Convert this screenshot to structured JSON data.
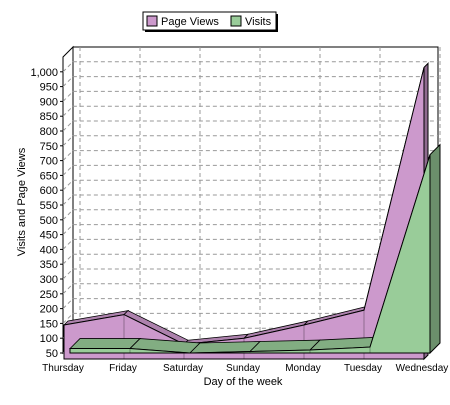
{
  "chart_data": {
    "type": "area",
    "title": "",
    "subtitle": "",
    "xlabel": "Day of the week",
    "ylabel": "Visits and Page Views",
    "ylim": [
      50,
      1050
    ],
    "y_ticks": [
      50,
      100,
      150,
      200,
      250,
      300,
      350,
      400,
      450,
      500,
      550,
      600,
      650,
      700,
      750,
      800,
      850,
      900,
      950,
      1000
    ],
    "y_tick_labels": [
      "50",
      "100",
      "150",
      "200",
      "250",
      "300",
      "350",
      "400",
      "450",
      "500",
      "550",
      "600",
      "650",
      "700",
      "750",
      "800",
      "850",
      "900",
      "950",
      "1,000"
    ],
    "categories": [
      "Thursday",
      "Friday",
      "Saturday",
      "Sunday",
      "Monday",
      "Tuesday",
      "Wednesday"
    ],
    "grid": true,
    "legend_position": "top-center",
    "three_d": true,
    "series": [
      {
        "name": "Page Views",
        "color": "#cc99cc",
        "values": [
          165,
          200,
          100,
          120,
          165,
          215,
          1035
        ]
      },
      {
        "name": "Visits",
        "color": "#99cc99",
        "values": [
          65,
          65,
          50,
          55,
          60,
          70,
          720
        ]
      }
    ]
  }
}
